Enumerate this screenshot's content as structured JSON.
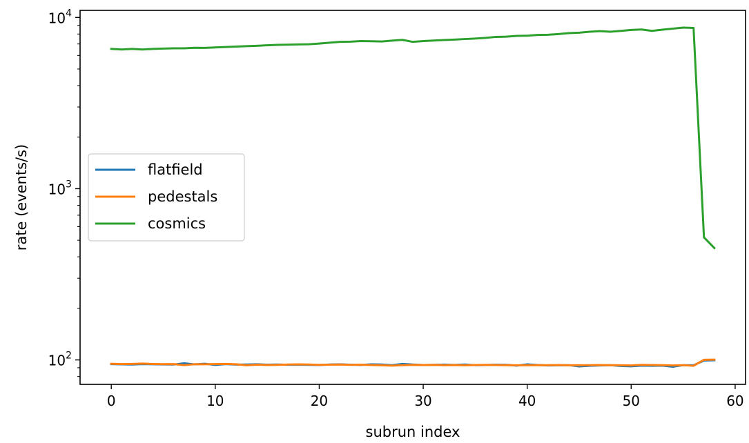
{
  "chart_data": {
    "type": "line",
    "title": "",
    "xlabel": "subrun index",
    "ylabel": "rate (events/s)",
    "xlim": [
      -3,
      61
    ],
    "ylim": [
      72,
      11000
    ],
    "yscale": "log",
    "xticks": [
      0,
      10,
      20,
      30,
      40,
      50,
      60
    ],
    "yticks": [
      {
        "value": 100,
        "base": "10",
        "exp": "2"
      },
      {
        "value": 1000,
        "base": "10",
        "exp": "3"
      },
      {
        "value": 10000,
        "base": "10",
        "exp": "4"
      }
    ],
    "grid": false,
    "legend_position": "center-left",
    "x": [
      0,
      1,
      2,
      3,
      4,
      5,
      6,
      7,
      8,
      9,
      10,
      11,
      12,
      13,
      14,
      15,
      16,
      17,
      18,
      19,
      20,
      21,
      22,
      23,
      24,
      25,
      26,
      27,
      28,
      29,
      30,
      31,
      32,
      33,
      34,
      35,
      36,
      37,
      38,
      39,
      40,
      41,
      42,
      43,
      44,
      45,
      46,
      47,
      48,
      49,
      50,
      51,
      52,
      53,
      54,
      55,
      56,
      57,
      58
    ],
    "series": [
      {
        "name": "flatfield",
        "color": "#1f77b4",
        "values": [
          94.5,
          94.2,
          94.0,
          94.6,
          94.3,
          94.1,
          94.0,
          95.6,
          94.2,
          95.0,
          93.5,
          94.6,
          93.9,
          94.0,
          94.3,
          93.8,
          94.0,
          93.7,
          93.8,
          93.6,
          93.4,
          94.0,
          94.2,
          93.8,
          93.5,
          94.2,
          94.0,
          93.2,
          94.8,
          94.0,
          93.4,
          93.6,
          93.9,
          93.5,
          94.0,
          93.2,
          93.4,
          93.8,
          93.6,
          92.6,
          94.2,
          93.4,
          92.8,
          93.0,
          93.2,
          91.6,
          92.4,
          92.8,
          93.2,
          92.2,
          91.8,
          92.6,
          92.4,
          92.6,
          91.2,
          93.2,
          93.0,
          99.2,
          99.6
        ]
      },
      {
        "name": "pedestals",
        "color": "#ff7f0e",
        "values": [
          95.0,
          94.6,
          94.8,
          95.2,
          94.7,
          94.5,
          94.6,
          93.2,
          94.4,
          94.3,
          94.6,
          94.8,
          94.3,
          93.0,
          93.8,
          93.4,
          93.6,
          94.0,
          94.2,
          94.0,
          93.6,
          93.8,
          94.0,
          93.6,
          93.8,
          93.4,
          93.0,
          92.6,
          93.2,
          93.6,
          93.4,
          93.6,
          93.2,
          93.4,
          93.0,
          93.4,
          93.6,
          93.4,
          93.2,
          93.0,
          93.0,
          93.2,
          93.2,
          93.4,
          93.0,
          93.0,
          93.2,
          93.4,
          93.2,
          93.0,
          92.8,
          93.6,
          93.4,
          93.2,
          92.8,
          93.2,
          92.4,
          100.2,
          100.4
        ]
      },
      {
        "name": "cosmics",
        "color": "#2ca02c",
        "values": [
          6550,
          6500,
          6550,
          6500,
          6550,
          6580,
          6600,
          6600,
          6650,
          6640,
          6680,
          6720,
          6760,
          6800,
          6830,
          6880,
          6920,
          6930,
          6960,
          6970,
          7040,
          7120,
          7200,
          7220,
          7280,
          7260,
          7240,
          7320,
          7400,
          7200,
          7280,
          7330,
          7380,
          7420,
          7480,
          7530,
          7600,
          7700,
          7720,
          7800,
          7820,
          7900,
          7920,
          8000,
          8100,
          8150,
          8250,
          8320,
          8250,
          8350,
          8450,
          8500,
          8350,
          8480,
          8600,
          8720,
          8680,
          520,
          450
        ]
      }
    ]
  }
}
